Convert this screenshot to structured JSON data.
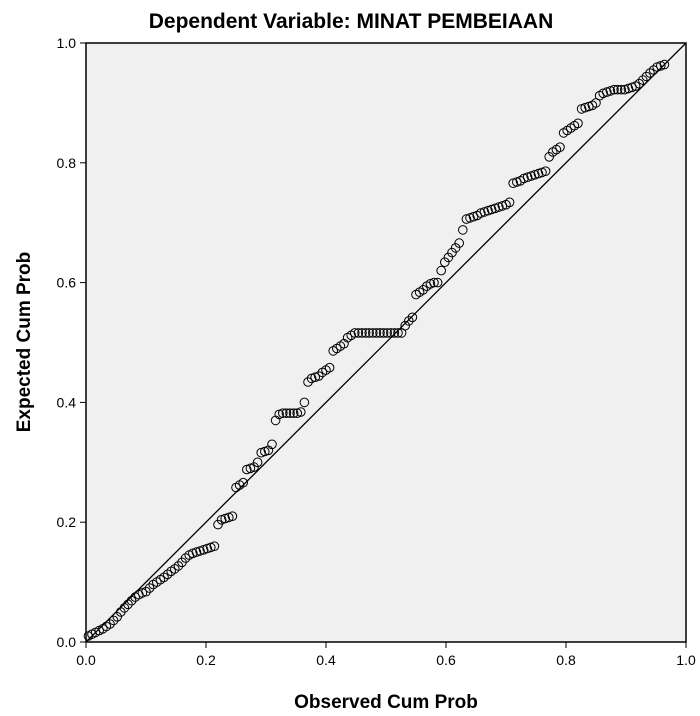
{
  "chart_data": {
    "type": "scatter",
    "title": "Dependent Variable: MINAT PEMBEIAAN",
    "xlabel": "Observed Cum Prob",
    "ylabel": "Expected Cum Prob",
    "xlim": [
      0,
      1
    ],
    "ylim": [
      0,
      1
    ],
    "x_ticks": [
      "0.0",
      "0.2",
      "0.4",
      "0.6",
      "0.8",
      "1.0"
    ],
    "y_ticks": [
      "0.0",
      "0.2",
      "0.4",
      "0.6",
      "0.8",
      "1.0"
    ],
    "grid": false,
    "reference_line": {
      "from": [
        0,
        0
      ],
      "to": [
        1,
        1
      ]
    },
    "colors": {
      "plot_background": "#f0f0f0",
      "frame": "#000000",
      "marker": "#000000"
    },
    "points": [
      [
        0.004,
        0.01
      ],
      [
        0.01,
        0.013
      ],
      [
        0.016,
        0.016
      ],
      [
        0.022,
        0.019
      ],
      [
        0.028,
        0.022
      ],
      [
        0.034,
        0.026
      ],
      [
        0.04,
        0.03
      ],
      [
        0.046,
        0.036
      ],
      [
        0.052,
        0.042
      ],
      [
        0.058,
        0.05
      ],
      [
        0.064,
        0.057
      ],
      [
        0.07,
        0.063
      ],
      [
        0.076,
        0.069
      ],
      [
        0.082,
        0.075
      ],
      [
        0.088,
        0.079
      ],
      [
        0.094,
        0.082
      ],
      [
        0.1,
        0.084
      ],
      [
        0.106,
        0.09
      ],
      [
        0.112,
        0.096
      ],
      [
        0.118,
        0.1
      ],
      [
        0.124,
        0.104
      ],
      [
        0.13,
        0.108
      ],
      [
        0.136,
        0.113
      ],
      [
        0.142,
        0.118
      ],
      [
        0.148,
        0.122
      ],
      [
        0.154,
        0.127
      ],
      [
        0.16,
        0.133
      ],
      [
        0.166,
        0.14
      ],
      [
        0.172,
        0.145
      ],
      [
        0.178,
        0.148
      ],
      [
        0.184,
        0.15
      ],
      [
        0.19,
        0.152
      ],
      [
        0.196,
        0.154
      ],
      [
        0.202,
        0.156
      ],
      [
        0.208,
        0.158
      ],
      [
        0.214,
        0.16
      ],
      [
        0.22,
        0.196
      ],
      [
        0.226,
        0.204
      ],
      [
        0.232,
        0.206
      ],
      [
        0.238,
        0.208
      ],
      [
        0.244,
        0.21
      ],
      [
        0.25,
        0.258
      ],
      [
        0.256,
        0.262
      ],
      [
        0.262,
        0.266
      ],
      [
        0.268,
        0.288
      ],
      [
        0.274,
        0.29
      ],
      [
        0.28,
        0.292
      ],
      [
        0.286,
        0.3
      ],
      [
        0.292,
        0.316
      ],
      [
        0.298,
        0.318
      ],
      [
        0.304,
        0.32
      ],
      [
        0.31,
        0.33
      ],
      [
        0.316,
        0.37
      ],
      [
        0.322,
        0.38
      ],
      [
        0.328,
        0.382
      ],
      [
        0.334,
        0.382
      ],
      [
        0.34,
        0.382
      ],
      [
        0.346,
        0.382
      ],
      [
        0.352,
        0.382
      ],
      [
        0.358,
        0.384
      ],
      [
        0.364,
        0.4
      ],
      [
        0.37,
        0.434
      ],
      [
        0.376,
        0.44
      ],
      [
        0.382,
        0.442
      ],
      [
        0.388,
        0.444
      ],
      [
        0.394,
        0.45
      ],
      [
        0.4,
        0.454
      ],
      [
        0.406,
        0.458
      ],
      [
        0.412,
        0.486
      ],
      [
        0.418,
        0.49
      ],
      [
        0.424,
        0.494
      ],
      [
        0.43,
        0.498
      ],
      [
        0.436,
        0.508
      ],
      [
        0.442,
        0.512
      ],
      [
        0.448,
        0.516
      ],
      [
        0.454,
        0.516
      ],
      [
        0.46,
        0.516
      ],
      [
        0.466,
        0.516
      ],
      [
        0.472,
        0.516
      ],
      [
        0.478,
        0.516
      ],
      [
        0.484,
        0.516
      ],
      [
        0.49,
        0.516
      ],
      [
        0.496,
        0.516
      ],
      [
        0.502,
        0.516
      ],
      [
        0.508,
        0.516
      ],
      [
        0.514,
        0.516
      ],
      [
        0.52,
        0.516
      ],
      [
        0.526,
        0.516
      ],
      [
        0.532,
        0.528
      ],
      [
        0.538,
        0.536
      ],
      [
        0.544,
        0.542
      ],
      [
        0.55,
        0.58
      ],
      [
        0.556,
        0.584
      ],
      [
        0.562,
        0.588
      ],
      [
        0.568,
        0.594
      ],
      [
        0.574,
        0.598
      ],
      [
        0.58,
        0.6
      ],
      [
        0.586,
        0.6
      ],
      [
        0.592,
        0.62
      ],
      [
        0.598,
        0.634
      ],
      [
        0.604,
        0.642
      ],
      [
        0.61,
        0.65
      ],
      [
        0.616,
        0.658
      ],
      [
        0.622,
        0.666
      ],
      [
        0.628,
        0.688
      ],
      [
        0.634,
        0.706
      ],
      [
        0.64,
        0.708
      ],
      [
        0.646,
        0.71
      ],
      [
        0.652,
        0.712
      ],
      [
        0.658,
        0.716
      ],
      [
        0.664,
        0.718
      ],
      [
        0.67,
        0.72
      ],
      [
        0.676,
        0.722
      ],
      [
        0.682,
        0.724
      ],
      [
        0.688,
        0.726
      ],
      [
        0.694,
        0.728
      ],
      [
        0.7,
        0.73
      ],
      [
        0.706,
        0.734
      ],
      [
        0.712,
        0.766
      ],
      [
        0.718,
        0.768
      ],
      [
        0.724,
        0.77
      ],
      [
        0.73,
        0.774
      ],
      [
        0.736,
        0.776
      ],
      [
        0.742,
        0.778
      ],
      [
        0.748,
        0.78
      ],
      [
        0.754,
        0.782
      ],
      [
        0.76,
        0.784
      ],
      [
        0.766,
        0.786
      ],
      [
        0.772,
        0.81
      ],
      [
        0.778,
        0.818
      ],
      [
        0.784,
        0.822
      ],
      [
        0.79,
        0.826
      ],
      [
        0.796,
        0.85
      ],
      [
        0.802,
        0.854
      ],
      [
        0.808,
        0.858
      ],
      [
        0.814,
        0.862
      ],
      [
        0.82,
        0.866
      ],
      [
        0.826,
        0.89
      ],
      [
        0.832,
        0.892
      ],
      [
        0.838,
        0.894
      ],
      [
        0.844,
        0.896
      ],
      [
        0.85,
        0.9
      ],
      [
        0.856,
        0.912
      ],
      [
        0.862,
        0.916
      ],
      [
        0.868,
        0.918
      ],
      [
        0.874,
        0.92
      ],
      [
        0.88,
        0.922
      ],
      [
        0.886,
        0.922
      ],
      [
        0.892,
        0.922
      ],
      [
        0.898,
        0.922
      ],
      [
        0.904,
        0.924
      ],
      [
        0.91,
        0.926
      ],
      [
        0.916,
        0.928
      ],
      [
        0.922,
        0.932
      ],
      [
        0.928,
        0.938
      ],
      [
        0.934,
        0.944
      ],
      [
        0.94,
        0.95
      ],
      [
        0.946,
        0.955
      ],
      [
        0.952,
        0.96
      ],
      [
        0.958,
        0.962
      ],
      [
        0.964,
        0.964
      ]
    ]
  }
}
